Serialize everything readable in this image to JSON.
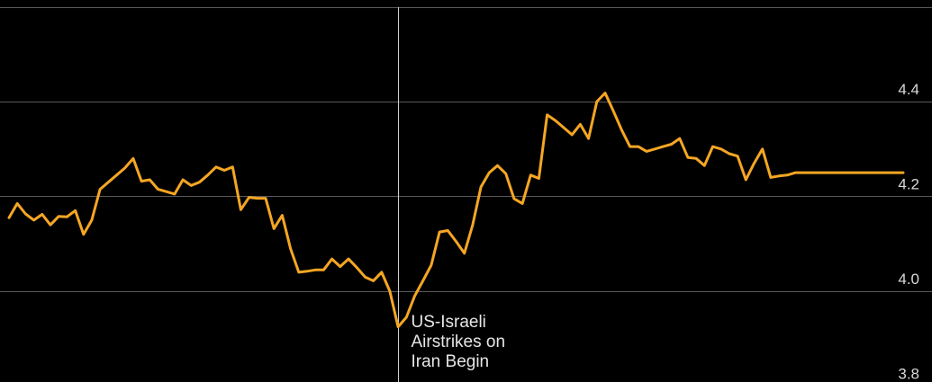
{
  "chart_data": {
    "type": "line",
    "title": "",
    "xlabel": "",
    "ylabel": "",
    "ylim": [
      3.8,
      4.4
    ],
    "y_ticks": [
      4.4,
      4.2,
      4.0,
      3.8
    ],
    "y_tick_labels": [
      "4.4",
      "4.2",
      "4.0",
      "3.8"
    ],
    "y_axis_position": "right",
    "grid": true,
    "grid_lines": [
      4.6,
      4.4,
      4.2,
      4.0
    ],
    "x": [
      0,
      1,
      2,
      3,
      4,
      5,
      6,
      7,
      8,
      9,
      10,
      11,
      12,
      13,
      14,
      15,
      16,
      17,
      18,
      19,
      20,
      21,
      22,
      23,
      24,
      25,
      26,
      27,
      28,
      29,
      30,
      31,
      32,
      33,
      34,
      35,
      36,
      37,
      38,
      39,
      40,
      41,
      42,
      43,
      44,
      45,
      46,
      47,
      48,
      49,
      50,
      51,
      52,
      53,
      54,
      55,
      56,
      57,
      58,
      59,
      60,
      61,
      62,
      63,
      64,
      65,
      66,
      67,
      68,
      69,
      70,
      71,
      72,
      73,
      74,
      75,
      76,
      77,
      78,
      79,
      80,
      81,
      82,
      83,
      84,
      85,
      86,
      87,
      88,
      89,
      90,
      91,
      92,
      93,
      94,
      95,
      96,
      97,
      98,
      99,
      100,
      101,
      102,
      103,
      104,
      105,
      106,
      107,
      108
    ],
    "series": [
      {
        "color": "#f5a623",
        "values": [
          4.155,
          4.185,
          4.163,
          4.15,
          4.162,
          4.14,
          4.158,
          4.157,
          4.17,
          4.12,
          4.15,
          4.215,
          4.23,
          4.245,
          4.26,
          4.28,
          4.232,
          4.235,
          4.215,
          4.21,
          4.205,
          4.235,
          4.223,
          4.23,
          4.245,
          4.262,
          4.255,
          4.262,
          4.172,
          4.198,
          4.196,
          4.196,
          4.132,
          4.16,
          4.09,
          4.04,
          4.042,
          4.045,
          4.045,
          4.068,
          4.052,
          4.068,
          4.05,
          4.03,
          4.022,
          4.04,
          4.0,
          3.925,
          3.945,
          3.99,
          4.022,
          4.055,
          4.125,
          4.128,
          4.105,
          4.08,
          4.14,
          4.22,
          4.25,
          4.265,
          4.248,
          4.195,
          4.185,
          4.245,
          4.238,
          4.372,
          4.36,
          4.345,
          4.33,
          4.352,
          4.322,
          4.4,
          4.418,
          4.38,
          4.34,
          4.305,
          4.305,
          4.295,
          4.3,
          4.305,
          4.31,
          4.322,
          4.282,
          4.28,
          4.265,
          4.305,
          4.3,
          4.29,
          4.285,
          4.235,
          4.27,
          4.3,
          4.24,
          4.243,
          4.245,
          4.25,
          4.25,
          4.25,
          4.25,
          4.25,
          4.25,
          4.25,
          4.25,
          4.25,
          4.25,
          4.25,
          4.25,
          4.25,
          4.25
        ]
      }
    ],
    "event_x": 47,
    "annotations": [
      {
        "lines": [
          "US-Israeli",
          "Airstrikes on",
          "Iran Begin"
        ]
      }
    ]
  }
}
